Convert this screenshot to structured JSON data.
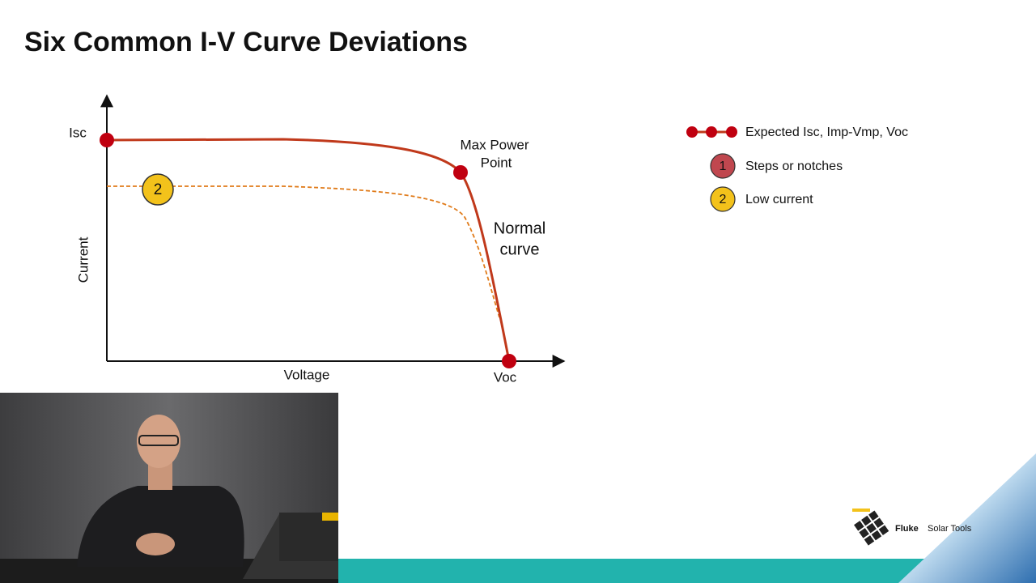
{
  "title": "Six Common I-V Curve Deviations",
  "diagram": {
    "y_axis_label": "Current",
    "x_axis_label": "Voltage",
    "isc_label": "Isc",
    "voc_label": "Voc",
    "max_power_label": [
      "Max Power",
      "Point"
    ],
    "normal_curve_label": [
      "Normal",
      "curve"
    ],
    "badge": "2"
  },
  "legend": [
    {
      "text": "Expected Isc, Imp-Vmp, Voc"
    },
    {
      "marker": "1",
      "text": "Steps or notches"
    },
    {
      "marker": "2",
      "text": "Low current"
    }
  ],
  "logo": {
    "brand": "Fluke",
    "text": "Solar Tools"
  }
}
